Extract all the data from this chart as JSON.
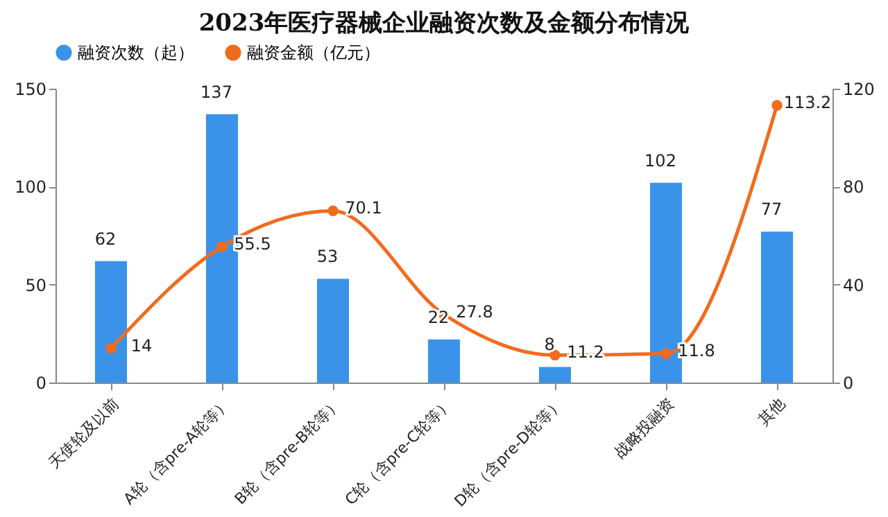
{
  "chart_data": {
    "type": "bar",
    "title": "2023年医疗器械企业融资次数及金额分布情况",
    "categories": [
      "天使轮及以前",
      "A轮（含pre-A轮等）",
      "B轮（含pre-B轮等）",
      "C轮（含pre-C轮等）",
      "D轮（含pre-D轮等）",
      "战略投融资",
      "其他"
    ],
    "series": [
      {
        "name": "融资次数（起）",
        "color": "#3a93e8",
        "values": [
          62,
          137,
          53,
          22,
          8,
          102,
          77
        ]
      },
      {
        "name": "融资金额（亿元）",
        "type": "line",
        "axis": "y2",
        "color": "#f26b1d",
        "marker": "circle",
        "values": [
          14,
          55.5,
          70.1,
          27.8,
          11.2,
          11.8,
          113.2
        ]
      }
    ],
    "ylim": [
      0,
      150
    ],
    "yticks": [
      0,
      50,
      100,
      150
    ],
    "y2lim": [
      0,
      120
    ],
    "y2ticks": [
      0,
      40,
      80,
      120
    ],
    "data_labels": true,
    "legend": "top"
  }
}
